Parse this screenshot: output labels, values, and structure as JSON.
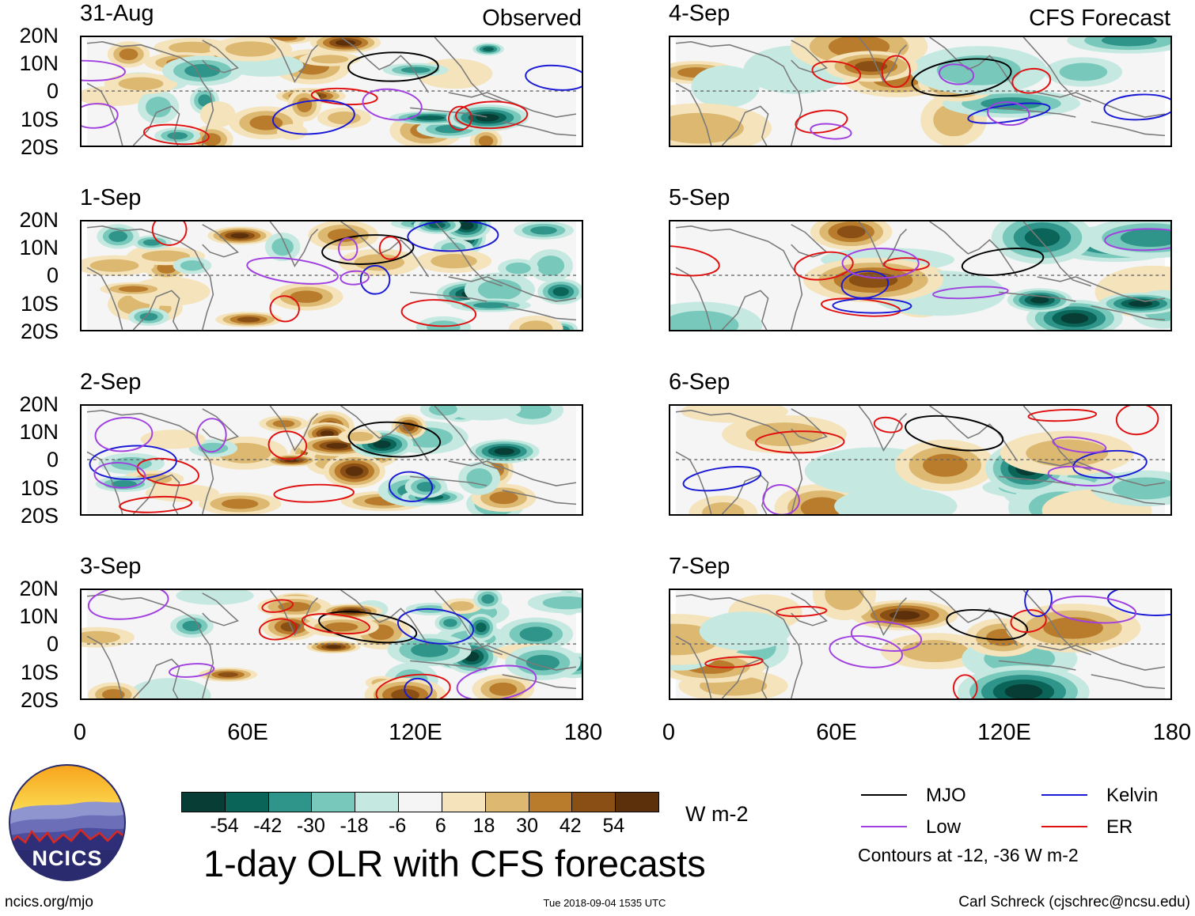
{
  "panels": [
    {
      "date": "31-Aug",
      "label": "Observed",
      "column": "left"
    },
    {
      "date": "1-Sep",
      "label": "",
      "column": "left"
    },
    {
      "date": "2-Sep",
      "label": "",
      "column": "left"
    },
    {
      "date": "3-Sep",
      "label": "",
      "column": "left"
    },
    {
      "date": "4-Sep",
      "label": "CFS Forecast",
      "column": "right"
    },
    {
      "date": "5-Sep",
      "label": "",
      "column": "right"
    },
    {
      "date": "6-Sep",
      "label": "",
      "column": "right"
    },
    {
      "date": "7-Sep",
      "label": "",
      "column": "right"
    }
  ],
  "y_ticks": [
    "20N",
    "10N",
    "0",
    "10S",
    "20S"
  ],
  "x_ticks": [
    "0",
    "60E",
    "120E",
    "180"
  ],
  "colorbar": {
    "ticks": [
      "-54",
      "-42",
      "-30",
      "-18",
      "-6",
      "6",
      "18",
      "30",
      "42",
      "54"
    ],
    "colors": [
      "#073d35",
      "#0a6458",
      "#2f948a",
      "#78c9bb",
      "#c5e9e1",
      "#f5f5f5",
      "#f4e3bb",
      "#dcb871",
      "#b87c2c",
      "#8a4f14",
      "#5b300a"
    ],
    "unit": "W m-2"
  },
  "title": "1-day OLR with CFS forecasts",
  "legend": {
    "items": [
      {
        "label": "MJO",
        "color": "#000000"
      },
      {
        "label": "Kelvin",
        "color": "#1a1ad6"
      },
      {
        "label": "Low",
        "color": "#a040e0"
      },
      {
        "label": "ER",
        "color": "#e01010"
      }
    ],
    "note": "Contours at -12, -36 W m-2"
  },
  "logo": {
    "text": "NCICS"
  },
  "footer": {
    "left": "ncics.org/mjo",
    "center": "Tue 2018-09-04 1535 UTC",
    "right": "Carl Schreck (cjschrec@ncsu.edu)"
  }
}
